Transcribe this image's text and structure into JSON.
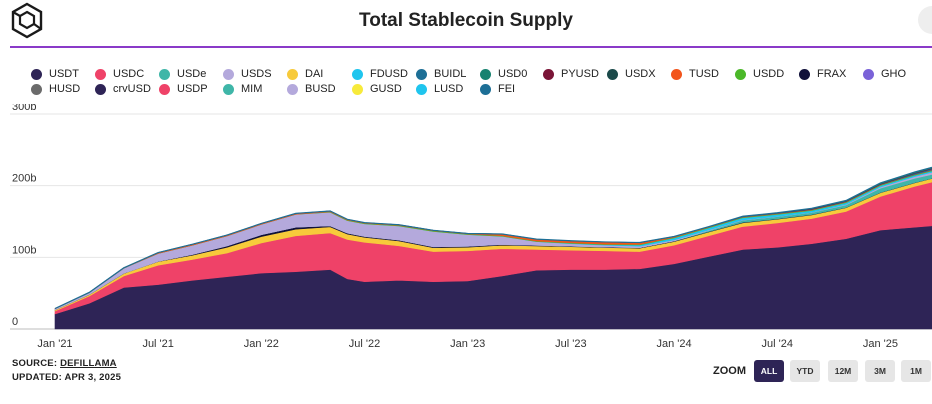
{
  "header": {
    "title": "Total Stablecoin Supply",
    "logo_icon": "cube-logo-icon"
  },
  "legend": [
    {
      "label": "USDT",
      "color": "#2e2456"
    },
    {
      "label": "USDC",
      "color": "#ef4268"
    },
    {
      "label": "USDe",
      "color": "#3fb6a8"
    },
    {
      "label": "USDS",
      "color": "#b4a9dc"
    },
    {
      "label": "DAI",
      "color": "#f7ca3b"
    },
    {
      "label": "FDUSD",
      "color": "#1fc5ee"
    },
    {
      "label": "BUIDL",
      "color": "#1d6f96"
    },
    {
      "label": "USD0",
      "color": "#16826f"
    },
    {
      "label": "PYUSD",
      "color": "#7a1437"
    },
    {
      "label": "USDX",
      "color": "#1b4a4a"
    },
    {
      "label": "TUSD",
      "color": "#f2541b"
    },
    {
      "label": "USDD",
      "color": "#4bb829"
    },
    {
      "label": "FRAX",
      "color": "#10103a"
    },
    {
      "label": "GHO",
      "color": "#7a62d8"
    },
    {
      "label": "HUSD",
      "color": "#6b6b6b"
    },
    {
      "label": "crvUSD",
      "color": "#2e2456"
    },
    {
      "label": "USDP",
      "color": "#ef4268"
    },
    {
      "label": "MIM",
      "color": "#3fb6a8"
    },
    {
      "label": "BUSD",
      "color": "#b4a9dc"
    },
    {
      "label": "GUSD",
      "color": "#f7ea3b"
    },
    {
      "label": "LUSD",
      "color": "#1fc5ee"
    },
    {
      "label": "FEI",
      "color": "#1d6f96"
    }
  ],
  "chart_data": {
    "type": "area",
    "stacked": true,
    "title": "Total Stablecoin Supply",
    "xlabel": "",
    "ylabel": "",
    "x_ticks": [
      "Jan '21",
      "Jul '21",
      "Jan '22",
      "Jul '22",
      "Jan '23",
      "Jul '23",
      "Jan '24",
      "Jul '24",
      "Jan '25"
    ],
    "y_ticks": [
      "0",
      "100b",
      "200b",
      "300b"
    ],
    "ylim": [
      0,
      300
    ],
    "y_unit": "billions USD",
    "grid": true,
    "legend_position": "top",
    "x": [
      "2021-01",
      "2021-03",
      "2021-05",
      "2021-07",
      "2021-09",
      "2021-11",
      "2022-01",
      "2022-03",
      "2022-05",
      "2022-06",
      "2022-07",
      "2022-09",
      "2022-11",
      "2023-01",
      "2023-03",
      "2023-05",
      "2023-07",
      "2023-09",
      "2023-11",
      "2024-01",
      "2024-03",
      "2024-05",
      "2024-07",
      "2024-09",
      "2024-11",
      "2025-01",
      "2025-03",
      "2025-04"
    ],
    "series": [
      {
        "name": "USDT",
        "color": "#2e2456",
        "values": [
          21,
          36,
          58,
          62,
          68,
          73,
          78,
          80,
          83,
          70,
          66,
          68,
          66,
          67,
          74,
          82,
          83,
          83,
          84,
          91,
          101,
          111,
          114,
          119,
          126,
          138,
          142,
          144
        ]
      },
      {
        "name": "USDC",
        "color": "#ef4268",
        "values": [
          4,
          10,
          16,
          27,
          29,
          33,
          42,
          50,
          51,
          55,
          55,
          48,
          42,
          42,
          38,
          29,
          27,
          26,
          24,
          26,
          29,
          32,
          34,
          35,
          38,
          47,
          57,
          61
        ]
      },
      {
        "name": "DAI",
        "color": "#f7ca3b",
        "values": [
          1.5,
          2,
          3.5,
          5,
          6,
          8,
          9,
          9.2,
          8.5,
          7.5,
          7,
          6.8,
          5.5,
          5.2,
          4.9,
          4.8,
          4.8,
          4.7,
          4.8,
          5,
          5.2,
          5.2,
          5.2,
          5.2,
          5.2,
          5.1,
          5,
          5
        ]
      },
      {
        "name": "FRAX",
        "color": "#10103a",
        "values": [
          0.2,
          0.3,
          0.3,
          0.4,
          1,
          1.8,
          2.5,
          2.8,
          1.4,
          1.3,
          1.2,
          1.3,
          1.1,
          1.1,
          1,
          0.9,
          0.8,
          0.7,
          0.7,
          0.7,
          0.6,
          0.6,
          0.5,
          0.5,
          0.4,
          0.4,
          0.3,
          0.3
        ]
      },
      {
        "name": "USDe",
        "color": "#3fb6a8",
        "values": [
          0,
          0,
          0,
          0,
          0,
          0,
          0,
          0,
          0,
          0,
          0,
          0,
          0,
          0,
          0,
          0,
          0,
          0,
          0,
          0.2,
          1.5,
          3,
          3.2,
          2.8,
          3.5,
          6,
          6,
          5.3
        ]
      },
      {
        "name": "USDS",
        "color": "#b4a9dc",
        "values": [
          0,
          0,
          0,
          0,
          0,
          0,
          0,
          0,
          0,
          0,
          0,
          0,
          0,
          0,
          0,
          0,
          0,
          0,
          0,
          0,
          0,
          0,
          0,
          0.2,
          0.8,
          1.5,
          2.3,
          3
        ]
      },
      {
        "name": "BUSD",
        "color": "#b4a9dc",
        "values": [
          1.5,
          2.5,
          7,
          11,
          13,
          14,
          14.5,
          18,
          19,
          17.5,
          17.5,
          19.7,
          21.6,
          16.5,
          11.5,
          5.3,
          3.5,
          2.5,
          2,
          1.3,
          0.8,
          0.4,
          0.2,
          0.1,
          0.1,
          0.1,
          0.1,
          0.1
        ]
      },
      {
        "name": "FDUSD",
        "color": "#1fc5ee",
        "values": [
          0,
          0,
          0,
          0,
          0,
          0,
          0,
          0,
          0,
          0,
          0,
          0,
          0,
          0,
          0,
          0,
          0.5,
          0.8,
          1.8,
          2.8,
          2.9,
          3,
          2.8,
          2.5,
          2.2,
          2,
          1.8,
          1.8
        ]
      },
      {
        "name": "USDD",
        "color": "#4bb829",
        "values": [
          0,
          0,
          0,
          0,
          0,
          0,
          0,
          0,
          0.6,
          0.7,
          0.7,
          0.7,
          0.7,
          0.7,
          0.7,
          0.7,
          0.7,
          0.7,
          0.7,
          0.7,
          0.7,
          0.7,
          0.7,
          0.7,
          0.7,
          0.7,
          0.7,
          0.7
        ]
      },
      {
        "name": "TUSD",
        "color": "#f2541b",
        "values": [
          0.4,
          0.4,
          0.6,
          1.3,
          1.3,
          1.3,
          1.3,
          1.3,
          1.2,
          1,
          1,
          1,
          0.8,
          0.8,
          2.5,
          2.7,
          2.8,
          3,
          2.5,
          1.2,
          0.5,
          0.5,
          0.5,
          0.5,
          0.5,
          0.5,
          0.5,
          0.5
        ]
      },
      {
        "name": "BUIDL",
        "color": "#1d6f96",
        "values": [
          0,
          0,
          0,
          0,
          0,
          0,
          0,
          0,
          0,
          0,
          0,
          0,
          0,
          0,
          0,
          0,
          0,
          0,
          0,
          0,
          0.3,
          0.5,
          0.5,
          0.5,
          0.5,
          0.6,
          1.5,
          1.9
        ]
      },
      {
        "name": "PYUSD",
        "color": "#7a1437",
        "values": [
          0,
          0,
          0,
          0,
          0,
          0,
          0,
          0,
          0,
          0,
          0,
          0,
          0,
          0,
          0,
          0,
          0,
          0.1,
          0.2,
          0.2,
          0.2,
          0.4,
          0.4,
          0.7,
          0.5,
          0.6,
          0.7,
          0.8
        ]
      },
      {
        "name": "USD0",
        "color": "#16826f",
        "values": [
          0,
          0,
          0,
          0,
          0,
          0,
          0,
          0,
          0,
          0,
          0,
          0,
          0,
          0,
          0,
          0,
          0,
          0,
          0,
          0,
          0,
          0,
          0.2,
          0.6,
          0.9,
          1.3,
          1.2,
          1.2
        ]
      }
    ]
  },
  "footer": {
    "source_prefix": "SOURCE: ",
    "source_link": "DEFILLAMA",
    "updated": "UPDATED: APR 3, 2025"
  },
  "zoom": {
    "label": "ZOOM",
    "buttons": [
      "ALL",
      "YTD",
      "12M",
      "3M",
      "1M"
    ],
    "active": "ALL"
  }
}
